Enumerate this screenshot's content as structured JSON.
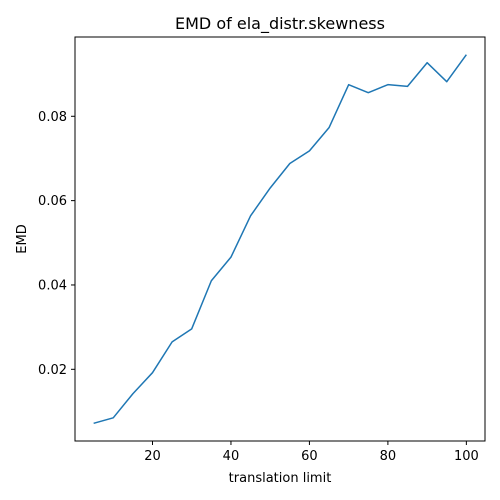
{
  "chart_data": {
    "type": "line",
    "title": "EMD of ela_distr.skewness",
    "xlabel": "translation limit",
    "ylabel": "EMD",
    "xlim": [
      0.25,
      104.75
    ],
    "ylim": [
      0.003,
      0.0988
    ],
    "xticks": [
      20,
      40,
      60,
      80,
      100
    ],
    "yticks": [
      0.02,
      0.04,
      0.06,
      0.08
    ],
    "ytick_labels": [
      "0.02",
      "0.04",
      "0.06",
      "0.08"
    ],
    "grid": false,
    "line_color": "#1f77b4",
    "series": [
      {
        "x": [
          5,
          10,
          15,
          20,
          25,
          30,
          35,
          40,
          45,
          50,
          55,
          60,
          65,
          70,
          75,
          80,
          85,
          90,
          95,
          100
        ],
        "y": [
          0.0072,
          0.0085,
          0.0142,
          0.0192,
          0.0265,
          0.0296,
          0.041,
          0.0466,
          0.0564,
          0.063,
          0.0688,
          0.0718,
          0.0773,
          0.0875,
          0.0856,
          0.0875,
          0.0871,
          0.0927,
          0.0882,
          0.0946
        ]
      }
    ]
  }
}
